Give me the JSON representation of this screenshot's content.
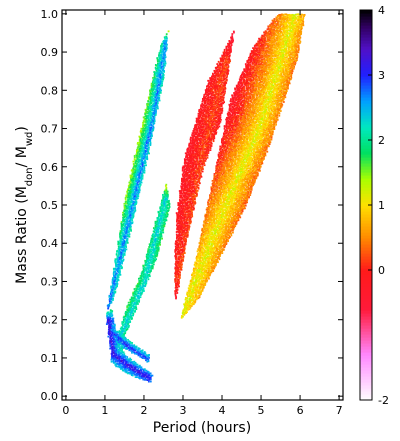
{
  "chart_data": {
    "type": "heatmap",
    "xlabel": "Period (hours)",
    "ylabel": "Mass Ratio (M",
    "ylabel_sub1": "don",
    "ylabel_mid": "/ M",
    "ylabel_sub2": "wd",
    "ylabel_end": ")",
    "xlim": [
      -0.1,
      7.1
    ],
    "ylim": [
      -0.01,
      1.01
    ],
    "x_ticks": [
      0,
      1,
      2,
      3,
      4,
      5,
      6,
      7
    ],
    "y_ticks": [
      0.0,
      0.1,
      0.2,
      0.3,
      0.4,
      0.5,
      0.6,
      0.7,
      0.8,
      0.9,
      1.0
    ],
    "colorbar": {
      "range": [
        -2,
        4
      ],
      "ticks": [
        -2,
        0,
        1,
        2,
        3,
        4
      ],
      "stops": [
        {
          "value": -2.0,
          "color": "#ffffff"
        },
        {
          "value": -1.3,
          "color": "#ff88ff"
        },
        {
          "value": -0.6,
          "color": "#ff1a3a"
        },
        {
          "value": 0.0,
          "color": "#ff1a1a"
        },
        {
          "value": 0.5,
          "color": "#ff8a00"
        },
        {
          "value": 1.0,
          "color": "#ffe000"
        },
        {
          "value": 1.4,
          "color": "#aaff00"
        },
        {
          "value": 1.8,
          "color": "#00e060"
        },
        {
          "value": 2.2,
          "color": "#00e8c0"
        },
        {
          "value": 2.6,
          "color": "#00a0ff"
        },
        {
          "value": 3.0,
          "color": "#2020ff"
        },
        {
          "value": 3.4,
          "color": "#5010c8"
        },
        {
          "value": 3.75,
          "color": "#300060"
        },
        {
          "value": 4.0,
          "color": "#000000"
        }
      ]
    },
    "regions": [
      {
        "name": "long-period fan",
        "outline": [
          [
            2.9,
            0.2
          ],
          [
            3.3,
            0.36
          ],
          [
            4.2,
            0.78
          ],
          [
            4.8,
            0.92
          ],
          [
            5.4,
            1.0
          ],
          [
            6.1,
            1.0
          ],
          [
            5.9,
            0.88
          ],
          [
            5.2,
            0.66
          ],
          [
            4.6,
            0.5
          ],
          [
            4.0,
            0.38
          ],
          [
            3.4,
            0.26
          ]
        ],
        "ridge": [
          [
            2.95,
            0.21
          ],
          [
            4.0,
            0.48
          ],
          [
            5.0,
            0.72
          ],
          [
            5.85,
            1.0
          ]
        ],
        "ridge_value": 1.2,
        "edge_value": -0.3
      },
      {
        "name": "red halo",
        "outline": [
          [
            2.75,
            0.24
          ],
          [
            2.8,
            0.46
          ],
          [
            3.0,
            0.62
          ],
          [
            3.3,
            0.72
          ],
          [
            3.6,
            0.82
          ],
          [
            3.9,
            0.88
          ],
          [
            4.1,
            0.92
          ],
          [
            4.3,
            0.96
          ],
          [
            3.95,
            0.72
          ],
          [
            3.5,
            0.6
          ],
          [
            3.1,
            0.42
          ],
          [
            2.85,
            0.28
          ]
        ],
        "ridge": [
          [
            2.9,
            0.3
          ],
          [
            3.5,
            0.64
          ],
          [
            4.1,
            0.88
          ]
        ],
        "ridge_value": 0.2,
        "edge_value": -0.5
      },
      {
        "name": "upper diagonal band",
        "outline": [
          [
            1.02,
            0.22
          ],
          [
            1.2,
            0.33
          ],
          [
            1.5,
            0.52
          ],
          [
            1.9,
            0.7
          ],
          [
            2.4,
            0.92
          ],
          [
            2.6,
            0.96
          ],
          [
            2.5,
            0.84
          ],
          [
            2.1,
            0.64
          ],
          [
            1.65,
            0.44
          ],
          [
            1.25,
            0.27
          ]
        ],
        "ridge": [
          [
            1.05,
            0.23
          ],
          [
            1.6,
            0.46
          ],
          [
            2.2,
            0.72
          ],
          [
            2.55,
            0.93
          ]
        ],
        "ridge_value": 2.8,
        "edge_value": 1.4
      },
      {
        "name": "middle band",
        "outline": [
          [
            1.2,
            0.12
          ],
          [
            1.55,
            0.24
          ],
          [
            1.9,
            0.32
          ],
          [
            2.2,
            0.43
          ],
          [
            2.55,
            0.56
          ],
          [
            2.65,
            0.5
          ],
          [
            2.3,
            0.36
          ],
          [
            1.9,
            0.26
          ],
          [
            1.45,
            0.15
          ]
        ],
        "ridge": [
          [
            1.3,
            0.14
          ],
          [
            2.0,
            0.3
          ],
          [
            2.55,
            0.52
          ]
        ],
        "ridge_value": 2.4,
        "edge_value": 1.3
      },
      {
        "name": "lower hook",
        "outline": [
          [
            1.0,
            0.22
          ],
          [
            1.1,
            0.14
          ],
          [
            1.15,
            0.09
          ],
          [
            1.4,
            0.07
          ],
          [
            1.8,
            0.05
          ],
          [
            2.15,
            0.04
          ],
          [
            2.2,
            0.06
          ],
          [
            1.9,
            0.08
          ],
          [
            1.5,
            0.11
          ],
          [
            1.3,
            0.16
          ],
          [
            1.15,
            0.23
          ]
        ],
        "ridge": [
          [
            1.08,
            0.2
          ],
          [
            1.2,
            0.11
          ],
          [
            1.6,
            0.08
          ],
          [
            2.1,
            0.05
          ]
        ],
        "ridge_value": 3.3,
        "edge_value": 2.0
      },
      {
        "name": "inner hook",
        "outline": [
          [
            1.1,
            0.18
          ],
          [
            1.4,
            0.13
          ],
          [
            1.8,
            0.11
          ],
          [
            2.1,
            0.09
          ],
          [
            2.1,
            0.11
          ],
          [
            1.7,
            0.14
          ],
          [
            1.35,
            0.17
          ]
        ],
        "ridge": [
          [
            1.15,
            0.17
          ],
          [
            1.6,
            0.13
          ],
          [
            2.05,
            0.1
          ]
        ],
        "ridge_value": 3.1,
        "edge_value": 2.2
      }
    ]
  }
}
